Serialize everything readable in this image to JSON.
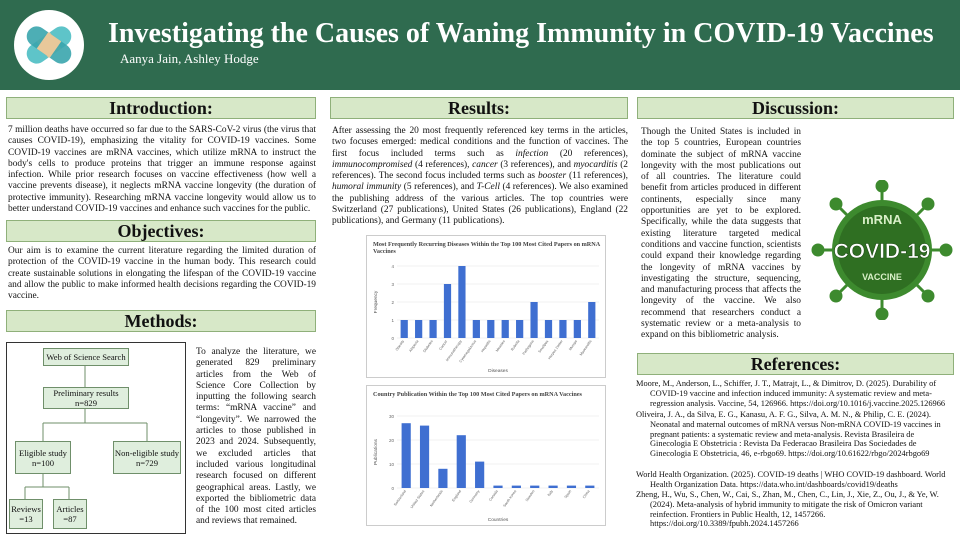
{
  "header": {
    "title": "Investigating the Causes of Waning Immunity in COVID-19 Vaccines",
    "authors": "Aanya Jain, Ashley Hodge"
  },
  "colors": {
    "header_bg": "#2f6b4f",
    "section_bg": "#d7e8c8",
    "bar": "#3f6fd1",
    "badge_green": "#3d8a2e"
  },
  "introduction": {
    "heading": "Introduction:",
    "text": "7 million deaths have occurred so far due to the SARS-CoV-2 virus (the virus that causes COVID-19), emphasizing the vitality for COVID-19 vaccines. Some COVID-19 vaccines are mRNA vaccines, which utilize mRNA to instruct the body's cells to produce proteins that trigger an immune response against infection. While prior research focuses on vaccine effectiveness (how well a vaccine prevents disease), it neglects mRNA vaccine longevity (the duration of protective immunity). Researching mRNA vaccine longevity would allow us to better understand COVID-19 vaccines and enhance such vaccines for the public."
  },
  "objectives": {
    "heading": "Objectives:",
    "text": "Our aim is to examine the current literature regarding the limited duration of protection of the COVID-19 vaccine in the human body. This research could create sustainable solutions in elongating the lifespan of the COVID-19 vaccine and allow the public to make informed health decisions regarding the COVID-19 vaccine."
  },
  "methods": {
    "heading": "Methods:",
    "text": "To analyze the literature, we generated 829 preliminary articles from the Web of Science Core Collection by inputting the following search terms: “mRNA vaccine” and “longevity”. We narrowed the articles to those published in 2023 and 2024. Subsequently, we excluded articles that included various longitudinal research focused on different geographical areas. Lastly, we exported the bibliometric data of the 100 most cited articles and reviews that remained.",
    "flow": {
      "search": "Web of Science Search",
      "preliminary": "Preliminary results n=829",
      "eligible": "Eligible study n=100",
      "non_eligible": "Non-eligible study n=729",
      "reviews": "Reviews =13",
      "articles": "Articles =87"
    }
  },
  "results": {
    "heading": "Results:",
    "p1": "After assessing the 20 most frequently referenced key terms in the articles, two focuses emerged: medical conditions and the function of vaccines. The first focus included terms such as ",
    "t_infection": "infection",
    "p2": " (20 references), ",
    "t_immuno": "immunocompromised",
    "p3": " (4 references), ",
    "t_cancer": "cancer",
    "p4": " (3 references), and ",
    "t_myocarditis": "myocarditis",
    "p5": " (2 references). The second focus included terms such as ",
    "t_booster": "booster",
    "p6": " (11 references), ",
    "t_humoral": "humoral immunity",
    "p7": " (5 references), and ",
    "t_tcell": "T-Cell",
    "p8": " (4 references). We also examined the publishing address of the various articles. The top countries were Switzerland (27 publications), United States (26 publications), England (22 publications), and Germany (11 publications)."
  },
  "chart_data": [
    {
      "type": "bar",
      "title": "Most Frequently Recurring Diseases Within the Top 100 Most Cited Papers on mRNA Vaccines",
      "xlabel": "Diseases",
      "ylabel": "Frequency",
      "categories": [
        "Obesity",
        "Alopecia",
        "Diabetes",
        "Cancer",
        "Immunotherapy",
        "Cytomegalovirus",
        "Hepatitis",
        "Measles",
        "Rubella",
        "Pathogens",
        "Smallpox",
        "Herpes Zoster",
        "Mumps",
        "Myocarditis"
      ],
      "values": [
        1,
        1,
        1,
        3,
        4,
        1,
        1,
        1,
        1,
        2,
        1,
        1,
        1,
        2
      ],
      "ylim": [
        0,
        4
      ]
    },
    {
      "type": "bar",
      "title": "Country Publication Within the Top 100 Most Cited Papers on mRNA Vaccines",
      "xlabel": "Countries",
      "ylabel": "Publications",
      "categories": [
        "Switzerland",
        "United States",
        "Netherlands",
        "England",
        "Germany",
        "Canada",
        "South Korea",
        "Sweden",
        "Italy",
        "Spain",
        "China"
      ],
      "values": [
        27,
        26,
        8,
        22,
        11,
        1,
        1,
        1,
        1,
        1,
        1
      ],
      "ylim": [
        0,
        30
      ]
    }
  ],
  "discussion": {
    "heading": "Discussion:",
    "text": "Though the United States is included in the top 5 countries, European countries dominate the subject of mRNA vaccine longevity with the most publications out of all countries. The literature could benefit from articles produced in different continents, especially since many opportunities are yet to be explored. Specifically, while the data suggests that existing literature targeted medical conditions and vaccine function, scientists could expand their knowledge regarding the longevity of mRNA vaccines by investigating the structure, sequencing, and manufacturing process that affects the longevity of the vaccine. We also recommend that researchers conduct a systematic review or a meta-analysis to expand on this bibliometric analysis.",
    "badge_main": "COVID-19",
    "badge_top": "mRNA",
    "badge_side": "VACCINE"
  },
  "references": {
    "heading": "References:",
    "items": [
      "Moore, M., Anderson, L., Schiffer, J. T., Matrajt, L., & Dimitrov, D. (2025). Durability of COVID-19 vaccine and infection induced immunity: A systematic review and meta-regression analysis. Vaccine, 54, 126966. https://doi.org/10.1016/j.vaccine.2025.126966",
      "Oliveira, J. A., da Silva, E. G., Kanasu, A. F. G., Silva, A. M. N., & Philip, C. E. (2024). Neonatal and maternal outcomes of mRNA versus Non-mRNA COVID-19 vaccines in pregnant patients: a systematic review and meta-analysis. Revista Brasileira de Ginecologia E Obstetricia : Revista Da Federacao Brasileira Das Sociedades de Ginecologia E Obstetricia, 46, e-rbgo69. https://doi.org/10.61622/rbgo/2024rbgo69",
      "World Health Organization. (2025). COVID-19 deaths | WHO COVID-19 dashboard. World Health Organization Data. https://data.who.int/dashboards/covid19/deaths",
      "Zheng, H., Wu, S., Chen, W., Cai, S., Zhan, M., Chen, C., Lin, J., Xie, Z., Ou, J., & Ye, W. (2024). Meta-analysis of hybrid immunity to mitigate the risk of Omicron variant reinfection. Frontiers in Public Health, 12, 1457266. https://doi.org/10.3389/fpubh.2024.1457266"
    ]
  }
}
